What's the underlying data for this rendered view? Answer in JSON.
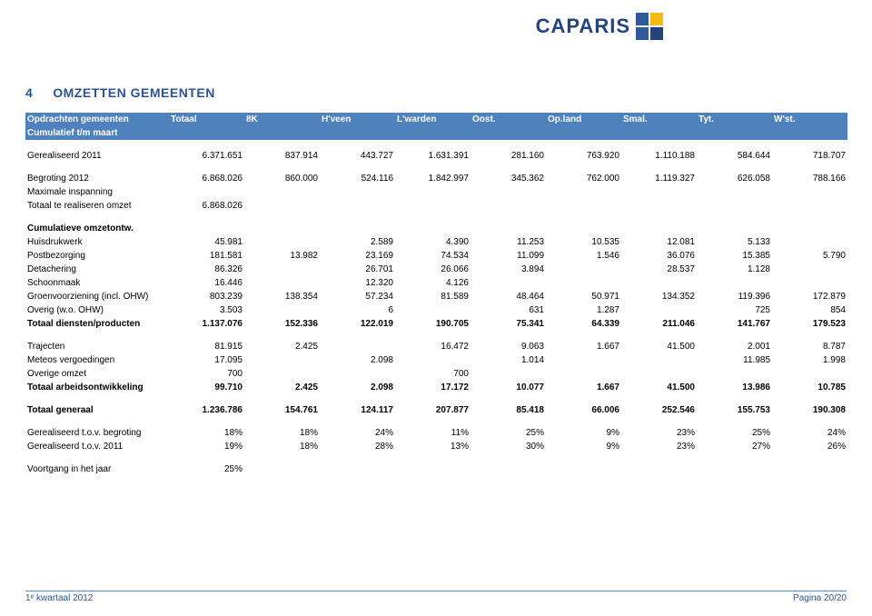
{
  "logo": {
    "text": "CAPARIS"
  },
  "section": {
    "number": "4",
    "title": "OMZETTEN GEMEENTEN"
  },
  "table": {
    "columns": [
      "Opdrachten gemeenten",
      "Totaal",
      "8K",
      "H'veen",
      "L'warden",
      "Oost.",
      "Op.land",
      "Smal.",
      "Tyt.",
      "W'st."
    ],
    "subheader": "Cumulatief t/m maart",
    "rows": [
      {
        "label": "Gerealiseerd 2011",
        "vals": [
          "6.371.651",
          "837.914",
          "443.727",
          "1.631.391",
          "281.160",
          "763.920",
          "1.110.188",
          "584.644",
          "718.707"
        ],
        "bold": false
      },
      {
        "spacer": true
      },
      {
        "label": "Begroting 2012",
        "vals": [
          "6.868.026",
          "860.000",
          "524.116",
          "1.842.997",
          "345.362",
          "762.000",
          "1.119.327",
          "626.058",
          "788.166"
        ],
        "bold": false
      },
      {
        "label": "Maximale inspanning",
        "vals": [
          "",
          "",
          "",
          "",
          "",
          "",
          "",
          "",
          ""
        ],
        "bold": false
      },
      {
        "label": "Totaal te realiseren omzet",
        "vals": [
          "6.868.026",
          "",
          "",
          "",
          "",
          "",
          "",
          "",
          ""
        ],
        "bold": false
      },
      {
        "spacer": true
      },
      {
        "label": "Cumulatieve omzetontw.",
        "vals": [
          "",
          "",
          "",
          "",
          "",
          "",
          "",
          "",
          ""
        ],
        "bold": true
      },
      {
        "label": "Huisdrukwerk",
        "vals": [
          "45.981",
          "",
          "2.589",
          "4.390",
          "11.253",
          "10.535",
          "12.081",
          "5.133",
          ""
        ],
        "bold": false
      },
      {
        "label": "Postbezorging",
        "vals": [
          "181.581",
          "13.982",
          "23.169",
          "74.534",
          "11.099",
          "1.546",
          "36.076",
          "15.385",
          "5.790"
        ],
        "bold": false
      },
      {
        "label": "Detachering",
        "vals": [
          "86.326",
          "",
          "26.701",
          "26.066",
          "3.894",
          "",
          "28.537",
          "1.128",
          ""
        ],
        "bold": false
      },
      {
        "label": "Schoonmaak",
        "vals": [
          "16.446",
          "",
          "12.320",
          "4.126",
          "",
          "",
          "",
          "",
          ""
        ],
        "bold": false
      },
      {
        "label": "Groenvoorziening (incl. OHW)",
        "vals": [
          "803.239",
          "138.354",
          "57.234",
          "81.589",
          "48.464",
          "50.971",
          "134.352",
          "119.396",
          "172.879"
        ],
        "bold": false
      },
      {
        "label": "Overig (w.o. OHW)",
        "vals": [
          "3.503",
          "",
          "6",
          "",
          "631",
          "1.287",
          "",
          "725",
          "854"
        ],
        "bold": false
      },
      {
        "label": "Totaal diensten/producten",
        "vals": [
          "1.137.076",
          "152.336",
          "122.019",
          "190.705",
          "75.341",
          "64.339",
          "211.046",
          "141.767",
          "179.523"
        ],
        "bold": true
      },
      {
        "spacer": true
      },
      {
        "label": "Trajecten",
        "vals": [
          "81.915",
          "2.425",
          "",
          "16.472",
          "9.063",
          "1.667",
          "41.500",
          "2.001",
          "8.787"
        ],
        "bold": false
      },
      {
        "label": "Meteos vergoedingen",
        "vals": [
          "17.095",
          "",
          "2.098",
          "",
          "1.014",
          "",
          "",
          "11.985",
          "1.998"
        ],
        "bold": false
      },
      {
        "label": "Overige omzet",
        "vals": [
          "700",
          "",
          "",
          "700",
          "",
          "",
          "",
          "",
          ""
        ],
        "bold": false
      },
      {
        "label": "Totaal arbeidsontwikkeling",
        "vals": [
          "99.710",
          "2.425",
          "2.098",
          "17.172",
          "10.077",
          "1.667",
          "41.500",
          "13.986",
          "10.785"
        ],
        "bold": true
      },
      {
        "spacer": true
      },
      {
        "label": "Totaal generaal",
        "vals": [
          "1.236.786",
          "154.761",
          "124.117",
          "207.877",
          "85.418",
          "66.006",
          "252.546",
          "155.753",
          "190.308"
        ],
        "bold": true
      },
      {
        "spacer": true
      },
      {
        "label": "Gerealiseerd t.o.v. begroting",
        "vals": [
          "18%",
          "18%",
          "24%",
          "11%",
          "25%",
          "9%",
          "23%",
          "25%",
          "24%"
        ],
        "bold": false
      },
      {
        "label": "Gerealiseerd t.o.v. 2011",
        "vals": [
          "19%",
          "18%",
          "28%",
          "13%",
          "30%",
          "9%",
          "23%",
          "27%",
          "26%"
        ],
        "bold": false
      },
      {
        "spacer": true
      },
      {
        "label": "Voortgang in het jaar",
        "vals": [
          "25%",
          "",
          "",
          "",
          "",
          "",
          "",
          "",
          ""
        ],
        "bold": false
      }
    ]
  },
  "footer": {
    "left": "1ᵉ kwartaal 2012",
    "right": "Pagina 20/20"
  },
  "colors": {
    "brand_blue": "#2b5597",
    "header_bg": "#4f81bd",
    "header_text": "#ffffff",
    "logo_yellow": "#f2bb16",
    "logo_blue1": "#2e5a9c",
    "logo_blue2": "#244379",
    "rule": "#5b8ec9"
  }
}
